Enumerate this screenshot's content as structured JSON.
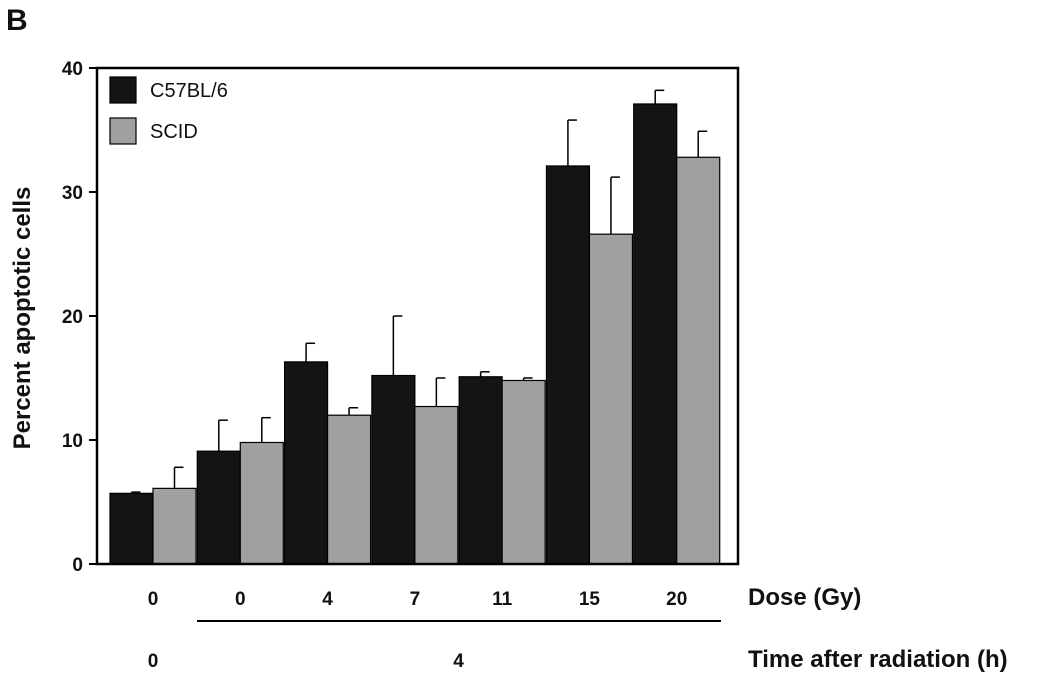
{
  "panel_label": "B",
  "chart_data": {
    "type": "bar",
    "ylabel": "Percent apoptotic cells",
    "ylim": [
      0,
      40
    ],
    "yticks": [
      0,
      10,
      20,
      30,
      40
    ],
    "x_rows": [
      {
        "label": "Dose (Gy)",
        "values": [
          "0",
          "0",
          "4",
          "7",
          "11",
          "15",
          "20"
        ]
      },
      {
        "label": "Time after radiation (h)",
        "values": [
          "0",
          "4"
        ]
      }
    ],
    "categories": [
      "0",
      "0",
      "4",
      "7",
      "11",
      "15",
      "20"
    ],
    "series": [
      {
        "name": "C57BL/6",
        "color": "#141414",
        "values": [
          5.7,
          9.1,
          16.3,
          15.2,
          15.1,
          32.1,
          37.1
        ],
        "errors": [
          0.1,
          2.5,
          1.5,
          4.8,
          0.4,
          3.7,
          1.1
        ]
      },
      {
        "name": "SCID",
        "color": "#a0a0a0",
        "values": [
          6.1,
          9.8,
          12.0,
          12.7,
          14.8,
          26.6,
          32.8
        ],
        "errors": [
          1.7,
          2.0,
          0.6,
          2.3,
          0.2,
          4.6,
          2.1
        ]
      }
    ],
    "legend_position": "top-left",
    "grid": false
  }
}
